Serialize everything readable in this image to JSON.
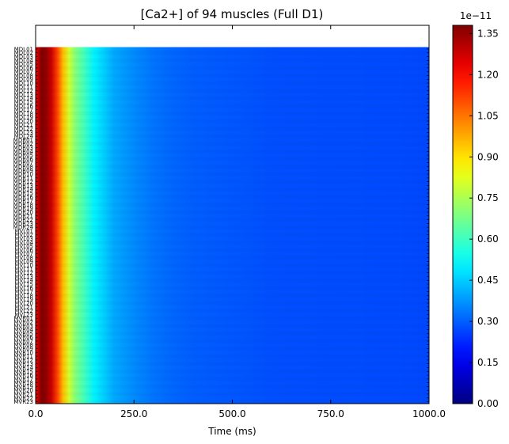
{
  "chart_data": {
    "type": "heatmap",
    "title": "[Ca2+] of 94 muscles (Full D1)",
    "xlabel": "Time (ms)",
    "ylabel": "",
    "xlim": [
      0,
      1000
    ],
    "x_ticks": [
      "0.0",
      "250.0",
      "500.0",
      "750.0",
      "1000.0"
    ],
    "colorbar": {
      "min": 0.0,
      "max": 1.38e-11,
      "offset_label": "1e−11",
      "ticks": [
        "0.00",
        "0.15",
        "0.30",
        "0.45",
        "0.60",
        "0.75",
        "0.90",
        "1.05",
        "1.20",
        "1.35"
      ],
      "colormap": "jet"
    },
    "rows": [
      "MDL01",
      "MDL02",
      "MDL03",
      "MDL04",
      "MDL05",
      "MDL06",
      "MDL07",
      "MDL08",
      "MDL09",
      "MDL10",
      "MDL11",
      "MDL12",
      "MDL13",
      "MDL14",
      "MDL15",
      "MDL16",
      "MDL17",
      "MDL18",
      "MDL19",
      "MDL20",
      "MDL21",
      "MDL22",
      "MDL23",
      "MDL24",
      "MDR01",
      "MDR02",
      "MDR03",
      "MDR04",
      "MDR05",
      "MDR06",
      "MDR07",
      "MDR08",
      "MDR09",
      "MDR10",
      "MDR11",
      "MDR12",
      "MDR13",
      "MDR14",
      "MDR15",
      "MDR16",
      "MDR17",
      "MDR18",
      "MDR19",
      "MDR20",
      "MDR21",
      "MDR22",
      "MDR23",
      "MDR24",
      "MVL01",
      "MVL02",
      "MVL03",
      "MVL04",
      "MVL05",
      "MVL06",
      "MVL07",
      "MVL08",
      "MVL09",
      "MVL10",
      "MVL11",
      "MVL12",
      "MVL13",
      "MVL14",
      "MVL15",
      "MVL16",
      "MVL17",
      "MVL18",
      "MVL19",
      "MVL20",
      "MVL21",
      "MVL22",
      "MVL23",
      "MVR01",
      "MVR02",
      "MVR03",
      "MVR04",
      "MVR05",
      "MVR06",
      "MVR07",
      "MVR08",
      "MVR09",
      "MVR10",
      "MVR11",
      "MVR12",
      "MVR13",
      "MVR14",
      "MVR15",
      "MVR16",
      "MVR17",
      "MVR18",
      "MVR19",
      "MVR20",
      "MVR21",
      "MVR22",
      "MVR23"
    ],
    "profile_time_ms": [
      0,
      10,
      15,
      25,
      40,
      55,
      70,
      85,
      100,
      125,
      150,
      175,
      200,
      250,
      300,
      350,
      400,
      500,
      600,
      800,
      1000
    ],
    "profile_value": [
      1.2e-11,
      1.33e-11,
      1.38e-11,
      1.36e-11,
      1.28e-11,
      1.12e-11,
      9.5e-12,
      8e-12,
      7e-12,
      6e-12,
      5e-12,
      4.5e-12,
      4e-12,
      3.6e-12,
      3.3e-12,
      3.1e-12,
      3e-12,
      2.9e-12,
      2.8e-12,
      2.75e-12,
      2.7e-12
    ],
    "blank_row_at_top": true
  }
}
